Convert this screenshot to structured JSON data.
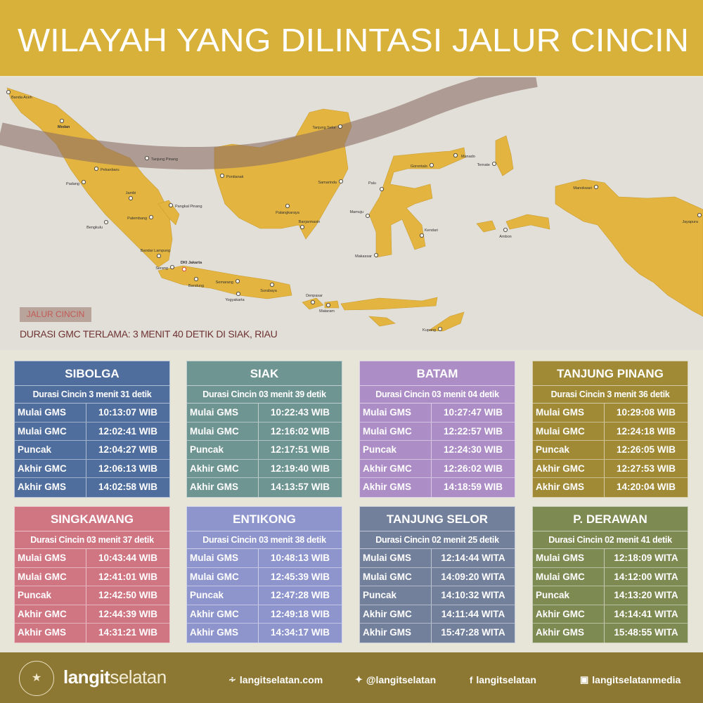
{
  "header": {
    "title": "WILAYAH YANG DILINTASI JALUR CINCIN"
  },
  "map": {
    "legend_label": "JALUR CINCIN",
    "note": "DURASI GMC TERLAMA: 3 MENIT 40 DETIK DI SIAK, RIAU",
    "land_color": "#e3b540",
    "path_color": "#8c6e64",
    "cities": [
      "Banda Aceh",
      "Medan",
      "Tanjung Pinang",
      "Pekanbaru",
      "Padang",
      "Jambi",
      "Pangkal Pinang",
      "Palembang",
      "Bengkulu",
      "Bandar Lampung",
      "Serang",
      "DKI Jakarta",
      "Bandung",
      "Semarang",
      "Yogyakarta",
      "Surabaya",
      "Denpasar",
      "Mataram",
      "Pontianak",
      "Samarinda",
      "Palangkaraya",
      "Banjarmasin",
      "Tanjung Selor",
      "Manado",
      "Gorontalo",
      "Ternate",
      "Palu",
      "Mamuju",
      "Kendari",
      "Makassar",
      "Ambon",
      "Manokwari",
      "Jayapura",
      "Kupang"
    ]
  },
  "row_labels": [
    "Mulai GMS",
    "Mulai GMC",
    "Puncak",
    "Akhir GMC",
    "Akhir GMS"
  ],
  "cards": [
    {
      "title": "SIBOLGA",
      "duration": "Durasi Cincin 3 menit 31 detik",
      "color": "#4f6d9d",
      "times": [
        "10:13:07 WIB",
        "12:02:41 WIB",
        "12:04:27 WIB",
        "12:06:13  WIB",
        "14:02:58 WIB"
      ]
    },
    {
      "title": "SIAK",
      "duration": "Durasi Cincin 03 menit 39 detik",
      "color": "#6f9592",
      "times": [
        "10:22:43 WIB",
        "12:16:02 WIB",
        "12:17:51 WIB",
        "12:19:40 WIB",
        "14:13:57 WIB"
      ]
    },
    {
      "title": "BATAM",
      "duration": "Durasi Cincin 03 menit 04 detik",
      "color": "#ad8dc6",
      "times": [
        "10:27:47 WIB",
        "12:22:57 WIB",
        "12:24:30 WIB",
        "12:26:02 WIB",
        "14:18:59 WIB"
      ]
    },
    {
      "title": "TANJUNG PINANG",
      "duration": "Durasi Cincin 3 menit 36 detik",
      "color": "#a08a36",
      "times": [
        "10:29:08 WIB",
        "12:24:18 WIB",
        "12:26:05 WIB",
        "12:27:53 WIB",
        "14:20:04 WIB"
      ]
    },
    {
      "title": "SINGKAWANG",
      "duration": "Durasi Cincin 03 menit 37 detik",
      "color": "#d07683",
      "times": [
        "10:43:44 WIB",
        "12:41:01 WIB",
        "12:42:50 WIB",
        "12:44:39 WIB",
        "14:31:21 WIB"
      ]
    },
    {
      "title": "ENTIKONG",
      "duration": "Durasi Cincin 03 menit 38 detik",
      "color": "#8e95cc",
      "times": [
        "10:48:13 WIB",
        "12:45:39 WIB",
        "12:47:28 WIB",
        "12:49:18 WIB",
        "14:34:17 WIB"
      ]
    },
    {
      "title": "TANJUNG SELOR",
      "duration": "Durasi Cincin 02 menit 25 detik",
      "color": "#72809b",
      "times": [
        "12:14:44 WITA",
        "14:09:20 WITA",
        "14:10:32 WITA",
        "14:11:44 WITA",
        "15:47:28 WITA"
      ]
    },
    {
      "title": "P. DERAWAN",
      "duration": "Durasi Cincin 02 menit 41 detik",
      "color": "#7d8b53",
      "times": [
        "12:18:09 WITA",
        "14:12:00 WITA",
        "14:13:20 WITA",
        "14:14:41 WITA",
        "15:48:55 WITA"
      ]
    }
  ],
  "footer": {
    "logo_text": "LANGITSELATAN",
    "brand_bold": "langit",
    "brand_light": "selatan",
    "links": [
      {
        "icon": "rss-icon",
        "label": "langitselatan.com"
      },
      {
        "icon": "twitter-icon",
        "label": "@langitselatan"
      },
      {
        "icon": "facebook-icon",
        "label": "langitselatan"
      },
      {
        "icon": "instagram-icon",
        "label": "langitselatanmedia"
      }
    ]
  }
}
